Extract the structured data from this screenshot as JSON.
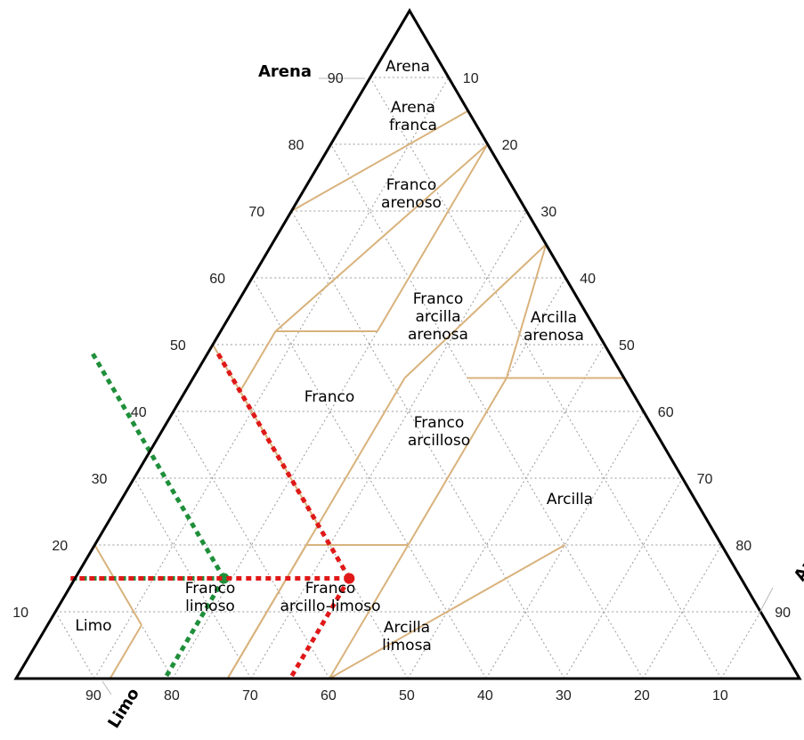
{
  "diagram": {
    "axes": {
      "sand": {
        "title": "Arena",
        "ticks": [
          "10",
          "20",
          "30",
          "40",
          "50",
          "60",
          "70",
          "80",
          "90"
        ]
      },
      "clay": {
        "title": "Arcilla",
        "ticks": [
          "10",
          "20",
          "30",
          "40",
          "50",
          "60",
          "70",
          "80",
          "90"
        ]
      },
      "silt": {
        "title": "Limo",
        "ticks": [
          "10",
          "20",
          "30",
          "40",
          "50",
          "60",
          "70",
          "80",
          "90"
        ]
      }
    },
    "regions": [
      {
        "name": "arena",
        "lines": [
          "Arena"
        ]
      },
      {
        "name": "arena-franca",
        "lines": [
          "Arena",
          "franca"
        ]
      },
      {
        "name": "franco-arenoso",
        "lines": [
          "Franco",
          "arenoso"
        ]
      },
      {
        "name": "franco-arcilla-arenosa",
        "lines": [
          "Franco",
          "arcilla",
          "arenosa"
        ]
      },
      {
        "name": "arcilla-arenosa",
        "lines": [
          "Arcilla",
          "arenosa"
        ]
      },
      {
        "name": "franco",
        "lines": [
          "Franco"
        ]
      },
      {
        "name": "franco-arcilloso",
        "lines": [
          "Franco",
          "arcilloso"
        ]
      },
      {
        "name": "arcilla",
        "lines": [
          "Arcilla"
        ]
      },
      {
        "name": "franco-limoso",
        "lines": [
          "Franco",
          "limoso"
        ]
      },
      {
        "name": "franco-arcillo-limoso",
        "lines": [
          "Franco",
          "arcillo-limoso"
        ]
      },
      {
        "name": "limo",
        "lines": [
          "Limo"
        ]
      },
      {
        "name": "arcilla-limosa",
        "lines": [
          "Arcilla",
          "limosa"
        ]
      }
    ],
    "samples": [
      {
        "name": "green-sample",
        "color": "#1f8f3a",
        "sand": 15,
        "clay": 19,
        "silt": 66
      },
      {
        "name": "red-sample",
        "color": "#e01818",
        "sand": 15,
        "clay": 35,
        "silt": 50
      }
    ],
    "colors": {
      "frame": "#000000",
      "grid": "#9a9a9a",
      "boundaries": "#d9b27c"
    }
  }
}
